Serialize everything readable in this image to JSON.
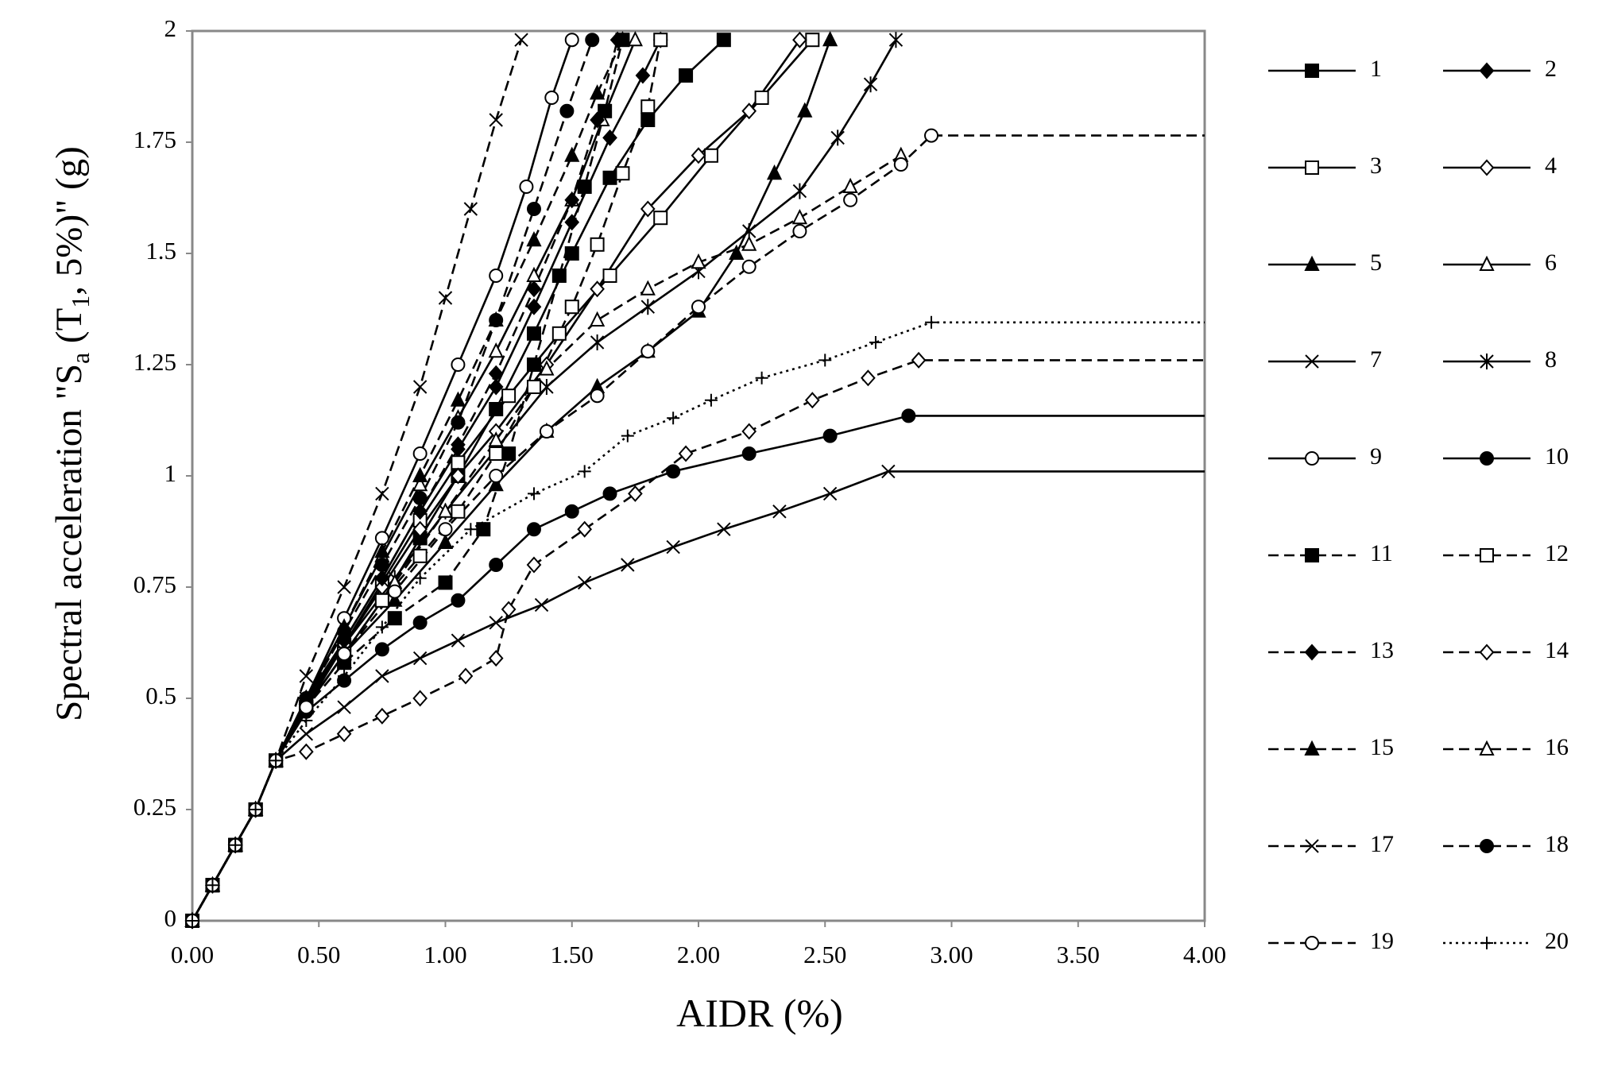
{
  "chart_data": {
    "type": "line",
    "x_title": "AIDR (%)",
    "y_title": [
      "Spectral acceleration  \"S",
      "a",
      " (T",
      "1",
      ", 5%)\"  (g)"
    ],
    "xlim": [
      0,
      4
    ],
    "ylim": [
      0,
      2
    ],
    "xticks": [
      {
        "value": 0,
        "label": "0.00"
      },
      {
        "value": 0.5,
        "label": "0.50"
      },
      {
        "value": 1,
        "label": "1.00"
      },
      {
        "value": 1.5,
        "label": "1.50"
      },
      {
        "value": 2,
        "label": "2.00"
      },
      {
        "value": 2.5,
        "label": "2.50"
      },
      {
        "value": 3,
        "label": "3.00"
      },
      {
        "value": 3.5,
        "label": "3.50"
      },
      {
        "value": 4,
        "label": "4.00"
      }
    ],
    "yticks": [
      0,
      0.25,
      0.5,
      0.75,
      1,
      1.25,
      1.5,
      1.75,
      2
    ],
    "grid": false,
    "legend": "right",
    "series": [
      {
        "name": "1",
        "color": "#000000",
        "marker": "square",
        "filled": true,
        "dash": "solid",
        "x": [
          0,
          0.08,
          0.17,
          0.25,
          0.33,
          0.45,
          0.6,
          0.75,
          0.9,
          1.05,
          1.2,
          1.35,
          1.5,
          1.65,
          1.8,
          1.95,
          2.1
        ],
        "values": [
          0,
          0.08,
          0.17,
          0.25,
          0.36,
          0.48,
          0.6,
          0.72,
          0.86,
          1.0,
          1.15,
          1.32,
          1.5,
          1.67,
          1.8,
          1.9,
          1.98
        ]
      },
      {
        "name": "2",
        "color": "#000000",
        "marker": "diamond",
        "filled": true,
        "dash": "solid",
        "x": [
          0,
          0.08,
          0.17,
          0.25,
          0.33,
          0.45,
          0.6,
          0.75,
          0.9,
          1.05,
          1.2,
          1.35,
          1.5,
          1.65,
          1.78,
          1.85
        ],
        "values": [
          0,
          0.08,
          0.17,
          0.25,
          0.36,
          0.5,
          0.63,
          0.77,
          0.92,
          1.06,
          1.2,
          1.38,
          1.57,
          1.76,
          1.9,
          1.98
        ]
      },
      {
        "name": "3",
        "color": "#000000",
        "marker": "square",
        "filled": false,
        "dash": "solid",
        "x": [
          0,
          0.08,
          0.17,
          0.25,
          0.33,
          0.45,
          0.6,
          0.75,
          0.9,
          1.05,
          1.25,
          1.45,
          1.65,
          1.85,
          2.05,
          2.25,
          2.45
        ],
        "values": [
          0,
          0.08,
          0.17,
          0.25,
          0.36,
          0.48,
          0.62,
          0.76,
          0.9,
          1.03,
          1.18,
          1.32,
          1.45,
          1.58,
          1.72,
          1.85,
          1.98
        ]
      },
      {
        "name": "4",
        "color": "#000000",
        "marker": "diamond",
        "filled": false,
        "dash": "solid",
        "x": [
          0,
          0.08,
          0.17,
          0.25,
          0.33,
          0.45,
          0.6,
          0.75,
          0.9,
          1.05,
          1.2,
          1.4,
          1.6,
          1.8,
          2.0,
          2.2,
          2.4
        ],
        "values": [
          0,
          0.08,
          0.17,
          0.25,
          0.36,
          0.49,
          0.62,
          0.75,
          0.88,
          1.0,
          1.1,
          1.25,
          1.42,
          1.6,
          1.72,
          1.82,
          1.98
        ]
      },
      {
        "name": "5",
        "color": "#000000",
        "marker": "triangle",
        "filled": true,
        "dash": "solid",
        "x": [
          0,
          0.08,
          0.17,
          0.25,
          0.33,
          0.45,
          0.6,
          0.8,
          1.0,
          1.2,
          1.4,
          1.6,
          1.8,
          2.0,
          2.15,
          2.3,
          2.42,
          2.52
        ],
        "values": [
          0,
          0.08,
          0.17,
          0.25,
          0.36,
          0.48,
          0.6,
          0.72,
          0.85,
          0.98,
          1.1,
          1.2,
          1.28,
          1.37,
          1.5,
          1.68,
          1.82,
          1.98
        ]
      },
      {
        "name": "6",
        "color": "#000000",
        "marker": "triangle",
        "filled": false,
        "dash": "solid",
        "x": [
          0,
          0.08,
          0.17,
          0.25,
          0.33,
          0.45,
          0.6,
          0.75,
          0.9,
          1.05,
          1.2,
          1.35,
          1.5,
          1.62,
          1.75
        ],
        "values": [
          0,
          0.08,
          0.17,
          0.25,
          0.36,
          0.5,
          0.66,
          0.82,
          0.98,
          1.13,
          1.28,
          1.45,
          1.62,
          1.8,
          1.98
        ]
      },
      {
        "name": "7",
        "color": "#000000",
        "marker": "x",
        "filled": false,
        "dash": "solid",
        "x": [
          0,
          0.08,
          0.17,
          0.25,
          0.33,
          0.45,
          0.6,
          0.75,
          0.9,
          1.05,
          1.2,
          1.38,
          1.55,
          1.72,
          1.9,
          2.1,
          2.32,
          2.52,
          2.75,
          4
        ],
        "values": [
          0,
          0.08,
          0.17,
          0.25,
          0.36,
          0.42,
          0.48,
          0.55,
          0.59,
          0.63,
          0.67,
          0.71,
          0.76,
          0.8,
          0.84,
          0.88,
          0.92,
          0.96,
          1.01,
          1.01
        ]
      },
      {
        "name": "8",
        "color": "#000000",
        "marker": "star",
        "filled": false,
        "dash": "solid",
        "x": [
          0,
          0.08,
          0.17,
          0.25,
          0.33,
          0.45,
          0.6,
          0.8,
          1.0,
          1.2,
          1.4,
          1.6,
          1.8,
          2.0,
          2.2,
          2.4,
          2.55,
          2.68,
          2.78
        ],
        "values": [
          0,
          0.08,
          0.17,
          0.25,
          0.36,
          0.5,
          0.62,
          0.77,
          0.92,
          1.06,
          1.2,
          1.3,
          1.38,
          1.46,
          1.55,
          1.64,
          1.76,
          1.88,
          1.98
        ]
      },
      {
        "name": "9",
        "color": "#000000",
        "marker": "circle",
        "filled": false,
        "dash": "solid",
        "x": [
          0,
          0.08,
          0.17,
          0.25,
          0.33,
          0.45,
          0.6,
          0.75,
          0.9,
          1.05,
          1.2,
          1.32,
          1.42,
          1.5
        ],
        "values": [
          0,
          0.08,
          0.17,
          0.25,
          0.36,
          0.5,
          0.68,
          0.86,
          1.05,
          1.25,
          1.45,
          1.65,
          1.85,
          1.98
        ]
      },
      {
        "name": "10",
        "color": "#000000",
        "marker": "circle",
        "filled": true,
        "dash": "solid",
        "x": [
          0,
          0.08,
          0.17,
          0.25,
          0.33,
          0.45,
          0.6,
          0.75,
          0.9,
          1.05,
          1.2,
          1.35,
          1.5,
          1.65,
          1.9,
          2.2,
          2.52,
          2.83,
          4
        ],
        "values": [
          0,
          0.08,
          0.17,
          0.25,
          0.36,
          0.47,
          0.54,
          0.61,
          0.67,
          0.72,
          0.8,
          0.88,
          0.92,
          0.96,
          1.01,
          1.05,
          1.09,
          1.135,
          1.135
        ]
      },
      {
        "name": "11",
        "color": "#000000",
        "marker": "square",
        "filled": true,
        "dash": "dashed",
        "x": [
          0,
          0.08,
          0.17,
          0.25,
          0.33,
          0.45,
          0.6,
          0.8,
          1.0,
          1.15,
          1.25,
          1.35,
          1.45,
          1.55,
          1.63,
          1.7
        ],
        "values": [
          0,
          0.08,
          0.17,
          0.25,
          0.36,
          0.48,
          0.58,
          0.68,
          0.76,
          0.88,
          1.05,
          1.25,
          1.45,
          1.65,
          1.82,
          1.98
        ]
      },
      {
        "name": "12",
        "color": "#000000",
        "marker": "square",
        "filled": false,
        "dash": "dashed",
        "x": [
          0,
          0.08,
          0.17,
          0.25,
          0.33,
          0.45,
          0.6,
          0.75,
          0.9,
          1.05,
          1.2,
          1.35,
          1.5,
          1.6,
          1.7,
          1.8,
          1.85
        ],
        "values": [
          0,
          0.08,
          0.17,
          0.25,
          0.36,
          0.48,
          0.6,
          0.72,
          0.82,
          0.92,
          1.05,
          1.2,
          1.38,
          1.52,
          1.68,
          1.83,
          1.98
        ]
      },
      {
        "name": "13",
        "color": "#000000",
        "marker": "diamond",
        "filled": true,
        "dash": "dashed",
        "x": [
          0,
          0.08,
          0.17,
          0.25,
          0.33,
          0.45,
          0.6,
          0.75,
          0.9,
          1.05,
          1.2,
          1.35,
          1.5,
          1.6,
          1.68
        ],
        "values": [
          0,
          0.08,
          0.17,
          0.25,
          0.36,
          0.49,
          0.63,
          0.77,
          0.92,
          1.07,
          1.23,
          1.42,
          1.62,
          1.8,
          1.98
        ]
      },
      {
        "name": "14",
        "color": "#000000",
        "marker": "diamond",
        "filled": false,
        "dash": "dashed",
        "x": [
          0,
          0.08,
          0.17,
          0.25,
          0.33,
          0.45,
          0.6,
          0.75,
          0.9,
          1.08,
          1.2,
          1.25,
          1.35,
          1.55,
          1.75,
          1.95,
          2.2,
          2.45,
          2.67,
          2.87,
          4
        ],
        "values": [
          0,
          0.08,
          0.17,
          0.25,
          0.36,
          0.38,
          0.42,
          0.46,
          0.5,
          0.55,
          0.59,
          0.7,
          0.8,
          0.88,
          0.96,
          1.05,
          1.1,
          1.17,
          1.22,
          1.26,
          1.26
        ]
      },
      {
        "name": "15",
        "color": "#000000",
        "marker": "triangle",
        "filled": true,
        "dash": "dashed",
        "x": [
          0,
          0.08,
          0.17,
          0.25,
          0.33,
          0.45,
          0.6,
          0.75,
          0.9,
          1.05,
          1.2,
          1.35,
          1.5,
          1.6,
          1.7
        ],
        "values": [
          0,
          0.08,
          0.17,
          0.25,
          0.36,
          0.5,
          0.66,
          0.83,
          1.0,
          1.17,
          1.35,
          1.53,
          1.72,
          1.86,
          1.98
        ]
      },
      {
        "name": "16",
        "color": "#000000",
        "marker": "triangle",
        "filled": false,
        "dash": "dashed",
        "x": [
          0,
          0.08,
          0.17,
          0.25,
          0.33,
          0.45,
          0.6,
          0.8,
          1.0,
          1.2,
          1.4,
          1.6,
          1.8,
          2.0,
          2.2,
          2.4,
          2.6,
          2.8
        ],
        "values": [
          0,
          0.08,
          0.17,
          0.25,
          0.36,
          0.48,
          0.6,
          0.76,
          0.92,
          1.08,
          1.24,
          1.35,
          1.42,
          1.48,
          1.52,
          1.58,
          1.65,
          1.72
        ]
      },
      {
        "name": "17",
        "color": "#000000",
        "marker": "x",
        "filled": false,
        "dash": "dashed",
        "x": [
          0,
          0.08,
          0.17,
          0.25,
          0.33,
          0.45,
          0.6,
          0.75,
          0.9,
          1.0,
          1.1,
          1.2,
          1.3
        ],
        "values": [
          0,
          0.08,
          0.17,
          0.25,
          0.36,
          0.55,
          0.75,
          0.96,
          1.2,
          1.4,
          1.6,
          1.8,
          1.98
        ]
      },
      {
        "name": "18",
        "color": "#000000",
        "marker": "circle",
        "filled": true,
        "dash": "dashed",
        "x": [
          0,
          0.08,
          0.17,
          0.25,
          0.33,
          0.45,
          0.6,
          0.75,
          0.9,
          1.05,
          1.2,
          1.35,
          1.48,
          1.58
        ],
        "values": [
          0,
          0.08,
          0.17,
          0.25,
          0.36,
          0.5,
          0.65,
          0.8,
          0.95,
          1.12,
          1.35,
          1.6,
          1.82,
          1.98
        ]
      },
      {
        "name": "19",
        "color": "#000000",
        "marker": "circle",
        "filled": false,
        "dash": "dashed",
        "x": [
          0,
          0.08,
          0.17,
          0.25,
          0.33,
          0.45,
          0.6,
          0.8,
          1.0,
          1.2,
          1.4,
          1.6,
          1.8,
          2.0,
          2.2,
          2.4,
          2.6,
          2.8,
          2.92,
          4
        ],
        "values": [
          0,
          0.08,
          0.17,
          0.25,
          0.36,
          0.48,
          0.6,
          0.74,
          0.88,
          1.0,
          1.1,
          1.18,
          1.28,
          1.38,
          1.47,
          1.55,
          1.62,
          1.7,
          1.765,
          1.765
        ]
      },
      {
        "name": "20",
        "color": "#000000",
        "marker": "plus",
        "filled": false,
        "dash": "dotted",
        "x": [
          0,
          0.08,
          0.17,
          0.25,
          0.33,
          0.45,
          0.6,
          0.75,
          0.9,
          1.1,
          1.35,
          1.55,
          1.72,
          1.9,
          2.05,
          2.25,
          2.5,
          2.7,
          2.92,
          4
        ],
        "values": [
          0,
          0.08,
          0.17,
          0.25,
          0.36,
          0.45,
          0.55,
          0.66,
          0.77,
          0.88,
          0.96,
          1.01,
          1.09,
          1.13,
          1.17,
          1.22,
          1.26,
          1.3,
          1.345,
          1.345
        ]
      }
    ]
  }
}
